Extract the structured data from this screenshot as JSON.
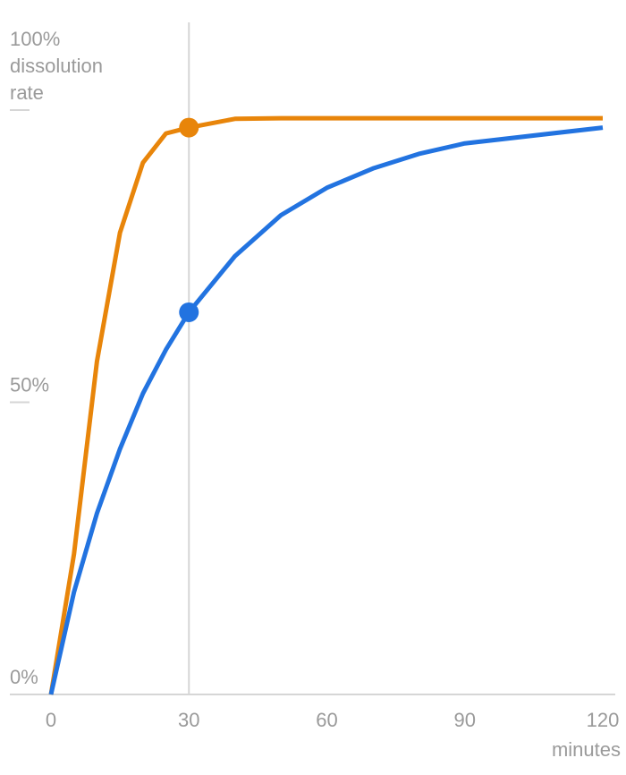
{
  "chart_data": {
    "type": "line",
    "title": "",
    "ylabel_lines": [
      "dissolution",
      "rate"
    ],
    "xlabel": "minutes",
    "xlim": [
      0,
      120
    ],
    "ylim": [
      0,
      100
    ],
    "x_ticks": [
      0,
      30,
      60,
      90,
      120
    ],
    "x_tick_labels": [
      "0",
      "30",
      "60",
      "90",
      "120"
    ],
    "y_ticks": [
      0,
      50,
      100
    ],
    "y_tick_labels": [
      "0%",
      "50%",
      "100%"
    ],
    "highlight_x": 30,
    "series": [
      {
        "name": "orange",
        "color": "#E8850A",
        "x": [
          0,
          5,
          10,
          15,
          20,
          25,
          30,
          40,
          50,
          60,
          70,
          80,
          90,
          120
        ],
        "y": [
          0,
          24,
          57,
          79,
          91,
          96,
          97,
          98.5,
          98.6,
          98.6,
          98.6,
          98.6,
          98.6,
          98.6
        ]
      },
      {
        "name": "blue",
        "color": "#2273E0",
        "x": [
          0,
          5,
          10,
          15,
          20,
          25,
          30,
          40,
          50,
          60,
          70,
          80,
          90,
          120
        ],
        "y": [
          0,
          17.5,
          31,
          42,
          51.5,
          59,
          65.4,
          75,
          82,
          86.7,
          90,
          92.5,
          94.3,
          97
        ]
      }
    ]
  }
}
